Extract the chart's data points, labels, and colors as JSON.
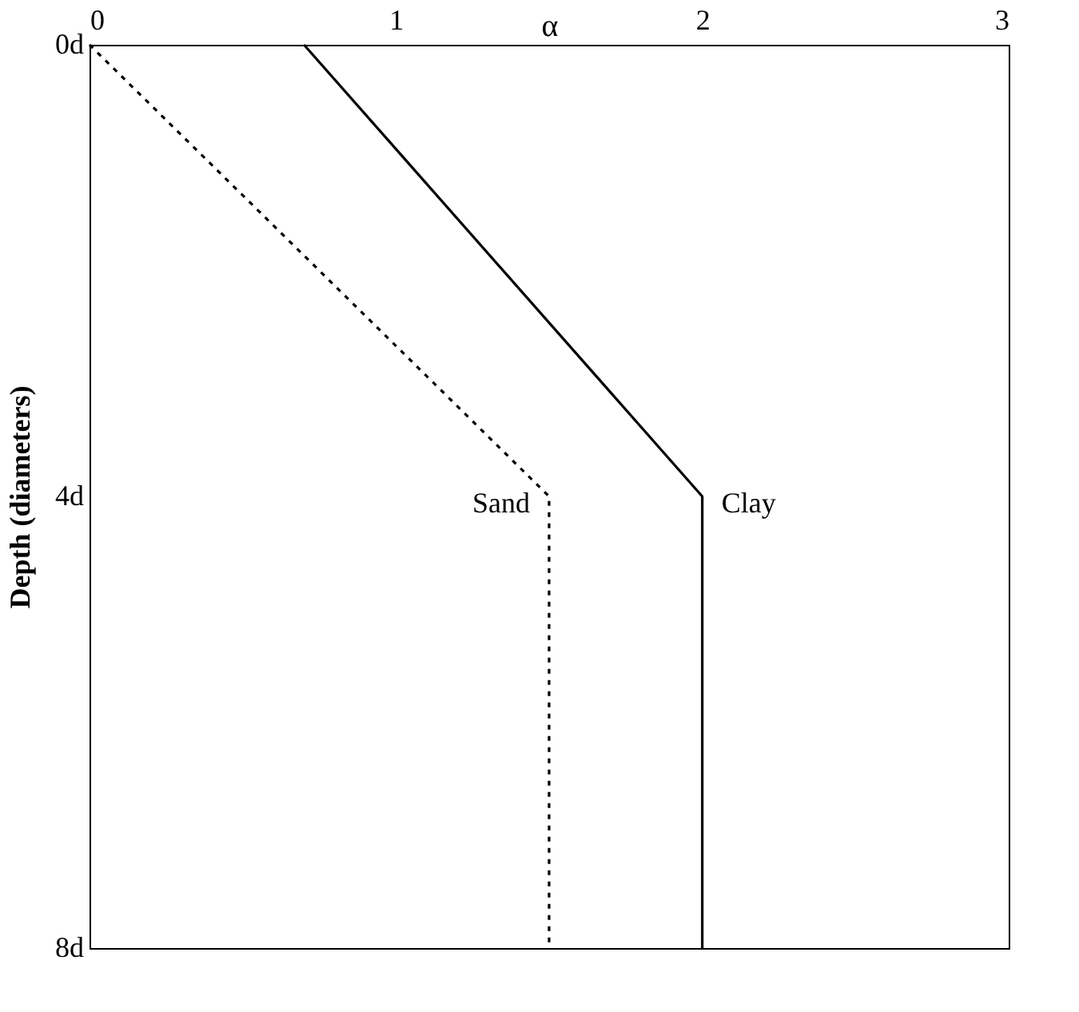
{
  "chart_data": {
    "type": "line",
    "xlabel": "α",
    "ylabel": "Depth (diameters)",
    "xlim": [
      0,
      3
    ],
    "xticks": [
      0,
      1,
      2,
      3
    ],
    "ylim": [
      8,
      0
    ],
    "yticks": [
      {
        "value": 0,
        "label": "0d"
      },
      {
        "value": 4,
        "label": "4d"
      },
      {
        "value": 8,
        "label": "8d"
      }
    ],
    "grid": false,
    "marker": "none",
    "series": [
      {
        "name": "Sand",
        "color": "#000000",
        "line_style": "dotted",
        "x": [
          0,
          1.5,
          1.5
        ],
        "values": [
          0,
          4,
          8
        ]
      },
      {
        "name": "Clay",
        "color": "#000000",
        "line_style": "solid",
        "x": [
          0.7,
          2,
          2
        ],
        "values": [
          0,
          4,
          8
        ]
      }
    ]
  }
}
